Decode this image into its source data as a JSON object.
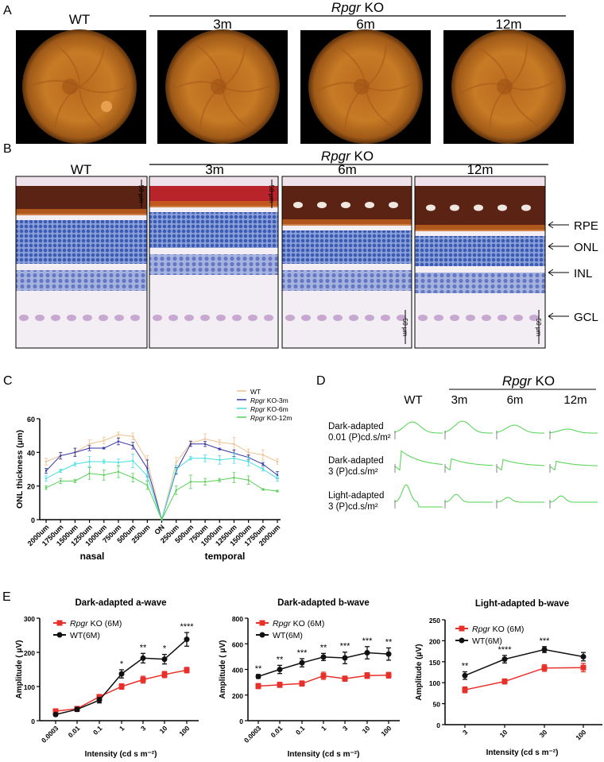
{
  "panels": {
    "A": {
      "label": "A",
      "wt": "WT",
      "group_italic": "Rpgr",
      "group_rest": " KO",
      "ages": [
        "3m",
        "6m",
        "12m"
      ]
    },
    "B": {
      "label": "B",
      "wt": "WT",
      "group_italic": "Rpgr",
      "group_rest": " KO",
      "ages": [
        "3m",
        "6m",
        "12m"
      ],
      "scale_bar": "50 μm",
      "layers": [
        "RPE",
        "ONL",
        "INL",
        "GCL"
      ]
    },
    "C": {
      "label": "C"
    },
    "D": {
      "label": "D",
      "wt": "WT",
      "group_italic": "Rpgr",
      "group_rest": " KO",
      "ages": [
        "3m",
        "6m",
        "12m"
      ],
      "conditions": [
        {
          "line1": "Dark-adapted",
          "line2": "0.01 (P)cd.s/m²"
        },
        {
          "line1": "Dark-adapted",
          "line2": "3 (P)cd.s/m²"
        },
        {
          "line1": "Light-adapted",
          "line2": "3 (P)cd.s/m²"
        }
      ],
      "trace_color": "#4cd44c"
    },
    "E": {
      "label": "E"
    }
  },
  "chart_data": [
    {
      "id": "C",
      "type": "line",
      "ylabel": "ONL thickness (μm)",
      "categories": [
        "2000um",
        "1750um",
        "1500um",
        "1250um",
        "1000um",
        "750um",
        "500um",
        "250um",
        "ON",
        "250um",
        "500um",
        "750um",
        "1000um",
        "1250um",
        "1500um",
        "1750um",
        "2000um"
      ],
      "group_labels": [
        "nasal",
        "temporal"
      ],
      "ylim": [
        0,
        60
      ],
      "yticks": [
        0,
        20,
        40,
        60
      ],
      "legend": "top-right",
      "series": [
        {
          "name": "WT",
          "color": "#f0c090",
          "values": [
            34.5,
            38,
            40,
            45,
            47,
            50.5,
            49.5,
            35,
            0,
            34,
            45.5,
            48,
            46,
            45,
            40,
            38.5,
            34.5
          ],
          "errors": [
            2,
            2,
            2,
            2.5,
            2,
            1.5,
            2,
            3,
            0,
            3,
            1.5,
            3,
            1.5,
            4,
            2,
            3,
            1.5
          ]
        },
        {
          "name": "Rpgr KO-3m",
          "color": "#3535a5",
          "values": [
            29,
            38,
            40,
            42.5,
            42.5,
            46.5,
            44,
            30.5,
            0,
            29,
            45,
            45,
            42,
            39.5,
            37,
            33,
            26.5
          ],
          "errors": [
            1.5,
            2,
            2.5,
            1.5,
            0.5,
            2,
            2,
            5,
            0,
            2,
            1.5,
            1.5,
            0.5,
            2,
            1.5,
            1,
            2
          ]
        },
        {
          "name": "Rpgr KO-6m",
          "color": "#45dede",
          "values": [
            24.5,
            29,
            33,
            34.5,
            34.5,
            34,
            35,
            26,
            0,
            30,
            36.5,
            36.5,
            35.5,
            36.5,
            34.5,
            30,
            24.5
          ],
          "errors": [
            1.5,
            1,
            1,
            3,
            1,
            2,
            4,
            3,
            0,
            2,
            1,
            2,
            2.5,
            3,
            2.5,
            1,
            1.5
          ]
        },
        {
          "name": "Rpgr KO-12m",
          "color": "#55d055",
          "values": [
            19,
            23,
            23,
            27.5,
            26.5,
            28.5,
            25,
            20.5,
            0,
            17.5,
            22.5,
            22.5,
            23.5,
            25,
            23.5,
            18,
            17
          ],
          "errors": [
            1,
            1.5,
            1,
            3.5,
            3,
            3.5,
            2.5,
            2.5,
            0,
            2.5,
            4,
            2,
            1,
            3,
            2.5,
            0.5,
            0.5
          ]
        }
      ]
    },
    {
      "id": "E1",
      "type": "line",
      "title": "Dark-adapted a-wave",
      "ylabel": "Amplitude ( μV)",
      "xlabel": "Intensity (cd s m⁻²)",
      "categories": [
        "0.0003",
        "0.01",
        "0.1",
        "1",
        "3",
        "10",
        "100"
      ],
      "ylim": [
        0,
        300
      ],
      "yticks": [
        0,
        100,
        200,
        300
      ],
      "legend": "top-left",
      "significance": [
        "",
        "",
        "",
        "*",
        "**",
        "*",
        "****"
      ],
      "series": [
        {
          "name": "Rpgr KO (6M)",
          "color": "#e8302a",
          "marker": "square",
          "values": [
            28,
            35,
            70,
            100,
            120,
            135,
            148
          ],
          "errors": [
            5,
            5,
            6,
            8,
            10,
            9,
            8
          ]
        },
        {
          "name": "WT(6M)",
          "color": "#111111",
          "marker": "circle",
          "values": [
            18,
            33,
            60,
            137,
            183,
            180,
            238
          ],
          "errors": [
            4,
            6,
            8,
            12,
            14,
            14,
            20
          ]
        }
      ]
    },
    {
      "id": "E2",
      "type": "line",
      "title": "Dark-adapted b-wave",
      "ylabel": "Amplitude ( μV)",
      "xlabel": "Intensity (cd s m⁻²)",
      "categories": [
        "0.0003",
        "0.01",
        "0.1",
        "1",
        "3",
        "10",
        "100"
      ],
      "ylim": [
        0,
        800
      ],
      "yticks": [
        0,
        200,
        400,
        600,
        800
      ],
      "legend": "top-left",
      "significance": [
        "**",
        "**",
        "***",
        "**",
        "***",
        "***",
        "**"
      ],
      "series": [
        {
          "name": "Rpgr KO (6M)",
          "color": "#e8302a",
          "marker": "square",
          "values": [
            270,
            280,
            290,
            350,
            328,
            352,
            355
          ],
          "errors": [
            20,
            20,
            20,
            28,
            20,
            22,
            22
          ]
        },
        {
          "name": "WT(6M)",
          "color": "#111111",
          "marker": "circle",
          "values": [
            345,
            400,
            452,
            497,
            490,
            530,
            520
          ],
          "errors": [
            15,
            32,
            32,
            28,
            45,
            48,
            48
          ]
        }
      ]
    },
    {
      "id": "E3",
      "type": "line",
      "title": "Light-adapted b-wave",
      "ylabel": "Amplitude (μV)",
      "xlabel": "Intensity (cd s m⁻²)",
      "categories": [
        "3",
        "10",
        "30",
        "100"
      ],
      "ylim": [
        0,
        250
      ],
      "yticks": [
        0,
        50,
        100,
        150,
        200,
        250
      ],
      "legend": "top-left",
      "significance": [
        "**",
        "****",
        "***",
        ""
      ],
      "series": [
        {
          "name": "Rpgr KO (6M)",
          "color": "#e8302a",
          "marker": "square",
          "values": [
            83,
            103,
            135,
            136
          ],
          "errors": [
            7,
            6,
            8,
            10
          ]
        },
        {
          "name": "WT(6M)",
          "color": "#111111",
          "marker": "circle",
          "values": [
            117,
            156,
            179,
            162
          ],
          "errors": [
            9,
            9,
            7,
            10
          ]
        }
      ]
    }
  ]
}
